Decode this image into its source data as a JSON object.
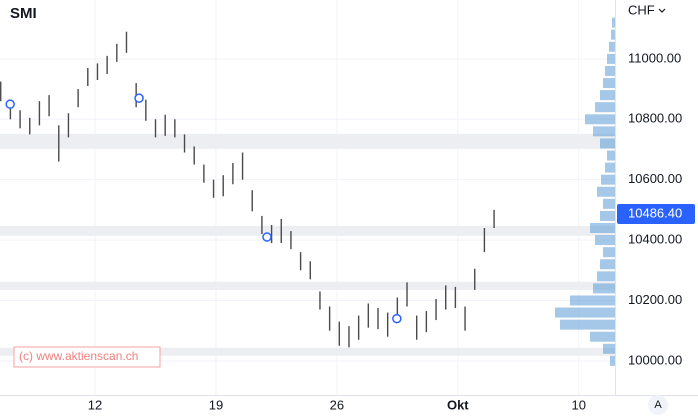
{
  "chart_data": {
    "type": "ohlc",
    "title": "SMI",
    "currency": "CHF",
    "watermark": "(c) www.aktienscan.ch",
    "scale_button": "A",
    "xlim": [
      -3.93,
      21.5
    ],
    "ylim": [
      9887,
      11195
    ],
    "xticks": [
      {
        "value": 0,
        "label": "12"
      },
      {
        "value": 5,
        "label": "19"
      },
      {
        "value": 10,
        "label": "26"
      },
      {
        "value": 15,
        "label": "Okt"
      },
      {
        "value": 20,
        "label": "10"
      }
    ],
    "yticks": [
      {
        "value": 10000,
        "label": "10000.00"
      },
      {
        "value": 10200,
        "label": "10200.00"
      },
      {
        "value": 10400,
        "label": "10400.00"
      },
      {
        "value": 10600,
        "label": "10600.00"
      },
      {
        "value": 10800,
        "label": "10800.00"
      },
      {
        "value": 11000,
        "label": "11000.00"
      }
    ],
    "grid": true,
    "bar_color": "#4a4a4a",
    "last_price": {
      "value": 10486.4,
      "label": "10486.40"
    },
    "last_price_color": "#2962ff",
    "bars": {
      "x": [
        -3.9,
        -3.5,
        -3.1,
        -2.7,
        -2.3,
        -1.9,
        -1.5,
        -1.1,
        -0.7,
        -0.3,
        0.1,
        0.5,
        0.9,
        1.3,
        1.7,
        2.1,
        2.5,
        2.9,
        3.3,
        3.7,
        4.1,
        4.5,
        4.9,
        5.3,
        5.7,
        6.1,
        6.5,
        6.9,
        7.3,
        7.7,
        8.1,
        8.5,
        8.9,
        9.3,
        9.7,
        10.1,
        10.5,
        10.9,
        11.3,
        11.7,
        12.1,
        12.5,
        12.9,
        13.3,
        13.7,
        14.1,
        14.5,
        14.9,
        15.3,
        15.7,
        16.1,
        16.5
      ],
      "high": [
        10925,
        10860,
        10830,
        10805,
        10860,
        10880,
        10780,
        10820,
        10900,
        10970,
        10985,
        11010,
        11050,
        11090,
        10920,
        10865,
        10800,
        10815,
        10800,
        10750,
        10710,
        10650,
        10600,
        10615,
        10655,
        10690,
        10565,
        10480,
        10450,
        10470,
        10430,
        10360,
        10330,
        10230,
        10180,
        10130,
        10115,
        10150,
        10190,
        10175,
        10160,
        10210,
        10260,
        10150,
        10165,
        10205,
        10250,
        10245,
        10180,
        10305,
        10440,
        10500
      ],
      "low": [
        10860,
        10800,
        10770,
        10750,
        10780,
        10810,
        10660,
        10740,
        10840,
        10910,
        10930,
        10950,
        10990,
        11020,
        10840,
        10795,
        10740,
        10745,
        10740,
        10690,
        10650,
        10590,
        10540,
        10545,
        10585,
        10600,
        10495,
        10420,
        10390,
        10390,
        10370,
        10300,
        10270,
        10170,
        10100,
        10050,
        10045,
        10070,
        10110,
        10105,
        10080,
        10130,
        10180,
        10070,
        10095,
        10135,
        10170,
        10175,
        10100,
        10235,
        10360,
        10440
      ]
    },
    "markers": {
      "x": [
        -3.51,
        1.82,
        7.11,
        12.48
      ],
      "y": [
        10850,
        10870,
        10410,
        10140
      ],
      "color": "#2962ff"
    },
    "zones": {
      "low": [
        10702,
        10414,
        10235,
        10017
      ],
      "high": [
        10752,
        10447,
        10262,
        10043
      ],
      "color": "#eceef1"
    },
    "volume_profile": {
      "color": "#5b9bd5",
      "levels": [
        10000,
        10040,
        10080,
        10120,
        10160,
        10200,
        10240,
        10280,
        10320,
        10360,
        10400,
        10440,
        10480,
        10520,
        10560,
        10600,
        10640,
        10680,
        10720,
        10760,
        10800,
        10840,
        10880,
        10920,
        10960,
        11000,
        11040,
        11080,
        11120
      ],
      "values": [
        5,
        12,
        25,
        55,
        60,
        45,
        22,
        18,
        15,
        12,
        20,
        25,
        15,
        12,
        18,
        14,
        10,
        8,
        15,
        22,
        30,
        20,
        15,
        12,
        10,
        8,
        6,
        4,
        3
      ]
    }
  }
}
